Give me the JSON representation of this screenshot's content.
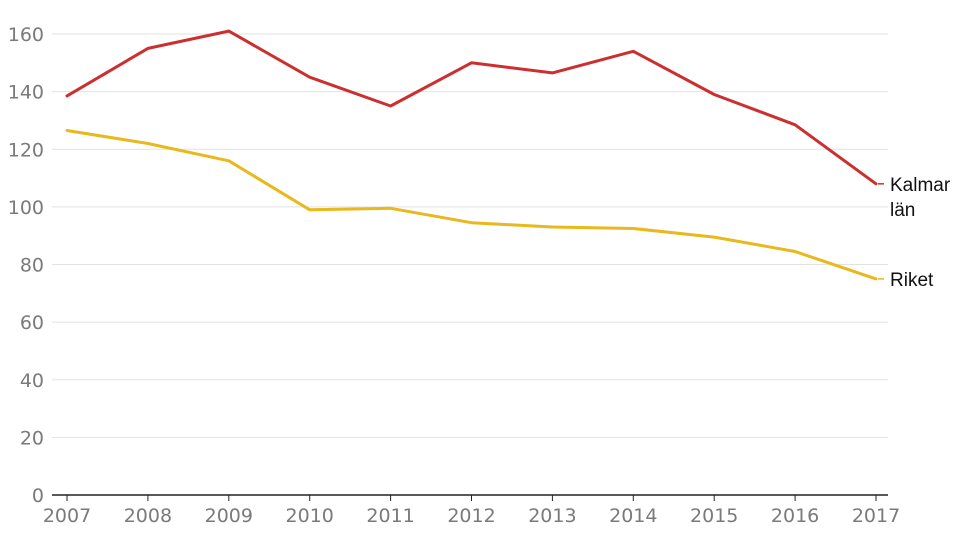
{
  "chart_data": {
    "type": "line",
    "title": "",
    "xlabel": "",
    "ylabel": "",
    "x": [
      "2007",
      "2008",
      "2009",
      "2010",
      "2011",
      "2012",
      "2013",
      "2014",
      "2015",
      "2016",
      "2017"
    ],
    "yticks": [
      "0",
      "20",
      "40",
      "60",
      "80",
      "100",
      "120",
      "140",
      "160"
    ],
    "ylim": [
      0,
      160
    ],
    "grid": true,
    "legend": "direct labels at line ends",
    "series": [
      {
        "name": "Kalmar län",
        "label_lines": [
          "Kalmar",
          "län"
        ],
        "color": "#cc2f2f",
        "values": [
          138.5,
          155,
          161,
          145,
          135,
          150,
          146.5,
          154,
          139,
          128.5,
          108
        ]
      },
      {
        "name": "Riket",
        "label_lines": [
          "Riket"
        ],
        "color": "#e8b81c",
        "values": [
          126.5,
          122,
          116,
          99,
          99.5,
          94.5,
          93,
          92.5,
          89.5,
          84.5,
          75
        ]
      }
    ]
  }
}
